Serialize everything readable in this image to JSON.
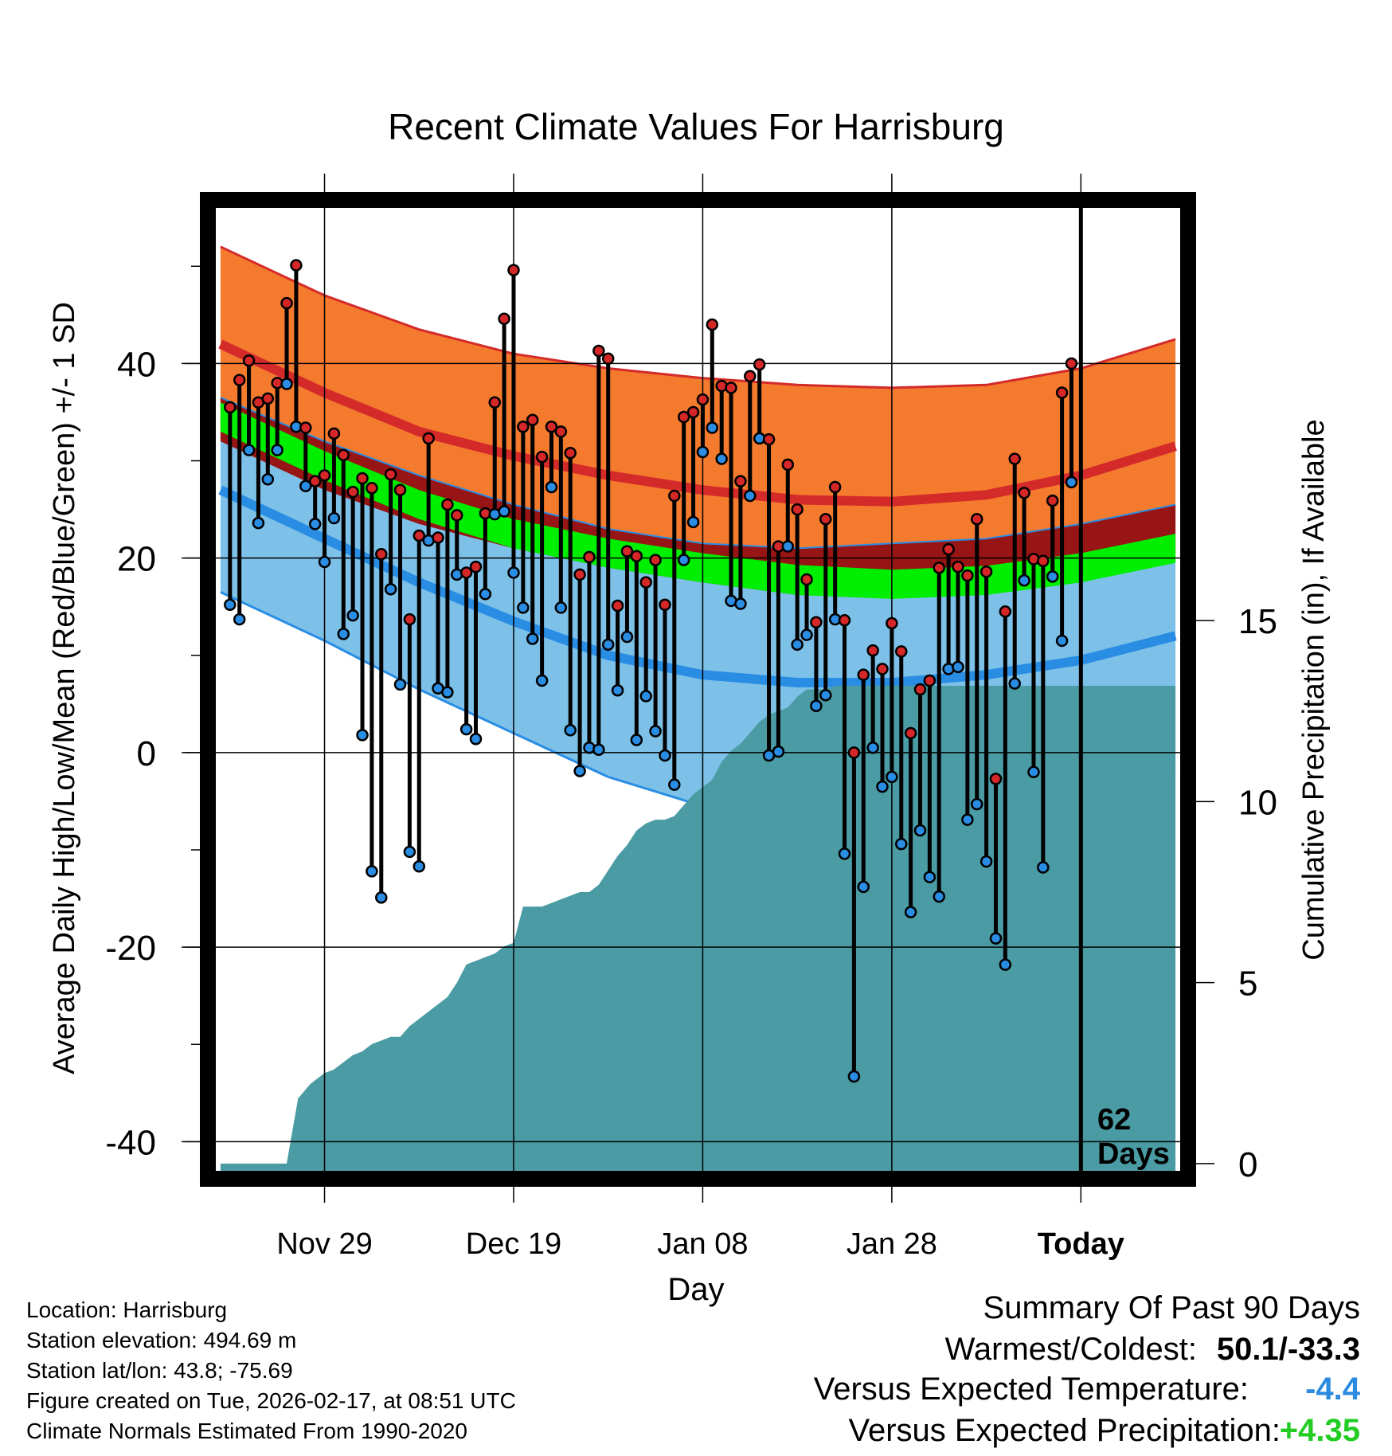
{
  "chart_data": {
    "type": "line",
    "title": "Recent Climate Values For Harrisburg",
    "xlabel": "Day",
    "ylabel_left": "Average Daily High/Low/Mean (Red/Blue/Green) +/- 1 SD",
    "ylabel_right": "Cumulative Precipitation (in), If Available",
    "xlim": [
      -11.5,
      90.5
    ],
    "ylim": [
      -43,
      56
    ],
    "y2lim": [
      -0.2,
      26.4
    ],
    "left_ticks": [
      40,
      20,
      0,
      -20,
      -40
    ],
    "right_ticks": [
      15,
      10,
      5,
      0
    ],
    "x_ticks": [
      {
        "day": 0,
        "label": "Nov 29"
      },
      {
        "day": 20,
        "label": "Dec 19"
      },
      {
        "day": 40,
        "label": "Jan 08"
      },
      {
        "day": 60,
        "label": "Jan 28"
      },
      {
        "day": 80,
        "label": "Today"
      }
    ],
    "today_day": 80,
    "today_annotation": [
      "62",
      "Days"
    ],
    "normals": {
      "days": [
        -11,
        0,
        10,
        20,
        30,
        40,
        50,
        60,
        70,
        80,
        90
      ],
      "high_plus_sd": [
        52,
        47,
        43.5,
        41,
        39.5,
        38.5,
        37.8,
        37.5,
        37.8,
        39.5,
        42.5
      ],
      "high_mean": [
        42,
        37,
        33,
        30.5,
        28.5,
        27,
        26,
        25.8,
        26.5,
        28.5,
        31.5
      ],
      "high_minus_sd": [
        32,
        27,
        23.5,
        21,
        19,
        17.5,
        16.2,
        16,
        16.5,
        18,
        20.5
      ],
      "mean_upper": [
        36,
        31,
        27,
        24,
        22,
        20.5,
        19.3,
        18.8,
        19.2,
        20.5,
        22.5
      ],
      "mean_lower": [
        33,
        28,
        24,
        21,
        19,
        17.5,
        16.2,
        15.8,
        16.2,
        17.5,
        19.5
      ],
      "low_plus_sd": [
        36.5,
        32,
        28.5,
        25.5,
        23,
        21.5,
        21,
        21.5,
        22,
        23.5,
        25.5
      ],
      "low_mean": [
        27,
        22,
        17.5,
        13.5,
        10,
        8,
        7.2,
        7.2,
        8,
        9.5,
        12
      ],
      "low_minus_sd": [
        16.5,
        11.5,
        6.5,
        2,
        -2.5,
        -5.5,
        -7,
        -7,
        -5.8,
        -4,
        -1.8
      ]
    },
    "series": [
      {
        "name": "High",
        "color": "#d62728",
        "values": [
          35.5,
          38.3,
          40.3,
          36,
          36.4,
          38,
          46.2,
          50.1,
          33.4,
          27.9,
          28.5,
          32.8,
          30.6,
          26.8,
          28.2,
          27.2,
          20.4,
          28.6,
          27,
          13.7,
          22.3,
          32.3,
          22.1,
          25.5,
          24.4,
          18.5,
          19.1,
          24.6,
          36,
          44.6,
          49.6,
          33.5,
          34.2,
          30.4,
          33.5,
          33,
          30.8,
          18.3,
          20.1,
          41.3,
          40.5,
          15.1,
          20.7,
          20.2,
          17.5,
          19.8,
          15.2,
          26.4,
          34.5,
          35,
          36.3,
          44,
          37.7,
          37.5,
          27.9,
          38.7,
          39.9,
          32.2,
          21.2,
          29.6,
          25,
          17.8,
          13.4,
          24,
          27.3,
          13.6,
          0,
          8,
          10.5,
          8.6,
          13.3,
          10.4,
          2,
          6.5,
          7.4,
          19,
          20.9,
          19.1,
          18.2,
          24,
          18.6,
          -2.7,
          14.5,
          30.2,
          26.7,
          19.9,
          19.7,
          25.9,
          37,
          40
        ],
        "lows": [
          15.2,
          13.7,
          31.1,
          23.6,
          28.1,
          31.1,
          37.9,
          33.5,
          27.4,
          23.5,
          19.6,
          24.1,
          12.2,
          14.1,
          1.8,
          -12.2,
          -14.9,
          16.8,
          7,
          -10.2,
          -11.7,
          21.8,
          6.6,
          6.2,
          18.3,
          2.4,
          1.4,
          16.3,
          24.5,
          24.8,
          18.5,
          14.9,
          11.7,
          7.4,
          27.3,
          14.9,
          2.3,
          -1.9,
          0.5,
          0.3,
          11.1,
          6.4,
          11.9,
          1.3,
          5.8,
          2.2,
          -0.3,
          -3.3,
          19.8,
          23.7,
          30.9,
          33.4,
          30.2,
          15.6,
          15.3,
          26.4,
          32.3,
          -0.3,
          0.1,
          21.2,
          11.1,
          12.1,
          4.8,
          5.9,
          13.7,
          -10.4,
          -33.3,
          -13.8,
          0.5,
          -3.5,
          -2.5,
          -9.4,
          -16.4,
          -8,
          -12.8,
          -14.8,
          8.6,
          8.8,
          -6.9,
          -5.3,
          -11.2,
          -19.1,
          -21.8,
          7.1,
          17.7,
          -2,
          -11.8,
          18.1,
          11.5,
          27.8
        ]
      }
    ],
    "precip_steps": [
      [
        -11,
        0
      ],
      [
        -7,
        0
      ],
      [
        -4,
        0
      ],
      [
        -2.8,
        1.8
      ],
      [
        -1.5,
        2.2
      ],
      [
        0,
        2.5
      ],
      [
        1,
        2.6
      ],
      [
        2,
        2.8
      ],
      [
        3,
        3
      ],
      [
        4,
        3.1
      ],
      [
        5,
        3.3
      ],
      [
        6,
        3.4
      ],
      [
        7,
        3.5
      ],
      [
        8,
        3.5
      ],
      [
        9,
        3.8
      ],
      [
        10,
        4
      ],
      [
        11,
        4.2
      ],
      [
        12,
        4.4
      ],
      [
        13,
        4.6
      ],
      [
        14,
        5
      ],
      [
        15,
        5.5
      ],
      [
        16,
        5.6
      ],
      [
        17,
        5.7
      ],
      [
        18,
        5.8
      ],
      [
        19,
        6
      ],
      [
        20,
        6.1
      ],
      [
        21,
        7.1
      ],
      [
        22,
        7.1
      ],
      [
        23,
        7.1
      ],
      [
        24,
        7.2
      ],
      [
        25,
        7.3
      ],
      [
        26,
        7.4
      ],
      [
        27,
        7.5
      ],
      [
        28,
        7.5
      ],
      [
        29,
        7.7
      ],
      [
        30,
        8.1
      ],
      [
        31,
        8.5
      ],
      [
        32,
        8.8
      ],
      [
        33,
        9.2
      ],
      [
        34,
        9.4
      ],
      [
        35,
        9.5
      ],
      [
        36,
        9.5
      ],
      [
        37,
        9.6
      ],
      [
        38,
        9.9
      ],
      [
        39,
        10.2
      ],
      [
        40,
        10.4
      ],
      [
        41,
        10.6
      ],
      [
        42,
        11.1
      ],
      [
        43,
        11.4
      ],
      [
        44,
        11.6
      ],
      [
        45,
        11.9
      ],
      [
        46,
        12.2
      ],
      [
        47,
        12.4
      ],
      [
        48,
        12.5
      ],
      [
        49,
        12.6
      ],
      [
        50,
        12.9
      ],
      [
        51,
        13.1
      ],
      [
        52,
        13.1
      ],
      [
        53,
        13.1
      ],
      [
        54,
        13.2
      ],
      [
        90,
        13.2
      ]
    ],
    "legend": "none"
  },
  "footer_left": [
    "Location: Harrisburg",
    "Station elevation: 494.69 m",
    "Station lat/lon: 43.8; -75.69",
    "Figure created on Tue, 2026-02-17, at 08:51 UTC",
    "Climate Normals Estimated From 1990-2020"
  ],
  "summary": {
    "title": "Summary Of Past 90 Days",
    "warmest_label": "Warmest/Coldest:",
    "warmest_value": "50.1/-33.3",
    "temp_label": "Versus Expected Temperature:",
    "temp_value": "-4.4",
    "temp_color": "#2b8be0",
    "precip_label": "Versus Expected Precipitation:",
    "precip_value": "+4.35",
    "precip_color": "#22cc22"
  },
  "colors": {
    "high_band": "#f47a2e",
    "high_line": "#d42a2a",
    "dark_band": "#971514",
    "mean_band": "#00ee00",
    "low_band": "#7dc1e8",
    "low_line": "#2a8de4",
    "precip": "#4a9ba4"
  }
}
